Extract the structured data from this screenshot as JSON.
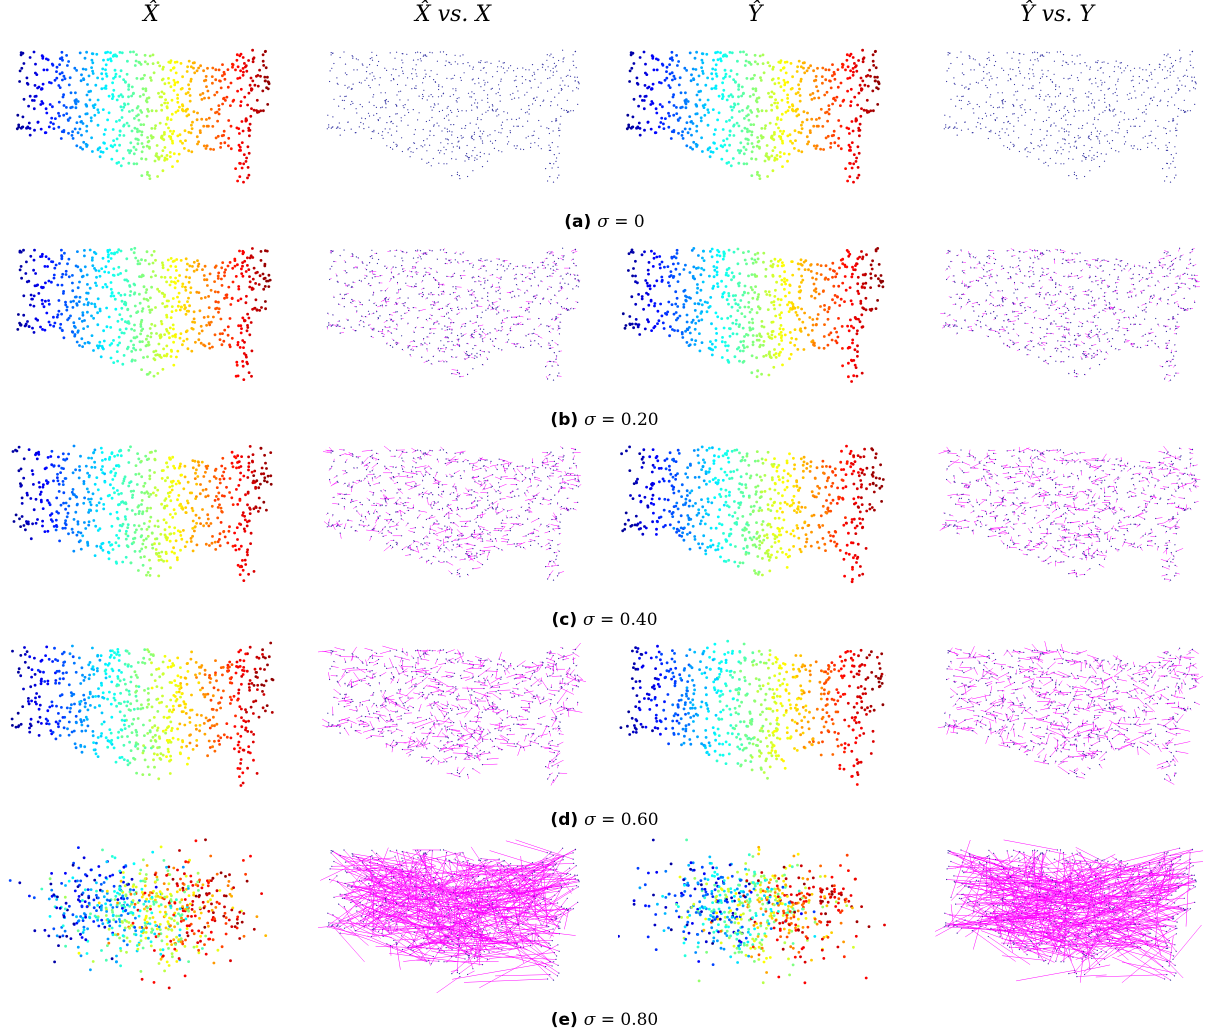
{
  "columns": [
    {
      "key": "xhat",
      "label": "X̂"
    },
    {
      "key": "xhat_vs_x",
      "label": "X̂  vs.  X"
    },
    {
      "key": "yhat",
      "label": "Ŷ"
    },
    {
      "key": "yhat_vs_y",
      "label": "Ŷ  vs.  Y"
    }
  ],
  "chart_data": {
    "type": "scatter",
    "rows": [
      {
        "caption_label": "(a)",
        "sigma_symbol": "σ",
        "sigma_text": " = 0",
        "sigma": 0
      },
      {
        "caption_label": "(b)",
        "sigma_symbol": "σ",
        "sigma_text": " = 0.20",
        "sigma": 0.2
      },
      {
        "caption_label": "(c)",
        "sigma_symbol": "σ",
        "sigma_text": " = 0.40",
        "sigma": 0.4
      },
      {
        "caption_label": "(d)",
        "sigma_symbol": "σ",
        "sigma_text": " = 0.60",
        "sigma": 0.6
      },
      {
        "caption_label": "(e)",
        "sigma_symbol": "σ",
        "sigma_text": " = 0.80",
        "sigma": 0.8
      }
    ],
    "colormap": "jet",
    "displacement_color": "#ff00ff",
    "point_count": 700
  }
}
